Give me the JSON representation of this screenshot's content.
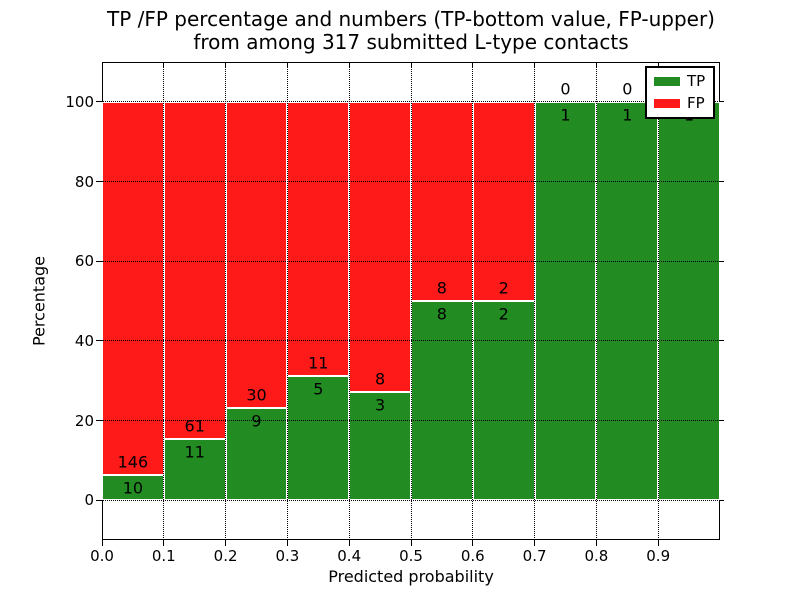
{
  "title": {
    "line1": "TP /FP percentage and numbers (TP-bottom value, FP-upper)",
    "line2": "from among 317 submitted L-type contacts"
  },
  "axes": {
    "xlabel": "Predicted probability",
    "ylabel": "Percentage",
    "x_tick_labels": [
      "0.0",
      "0.1",
      "0.2",
      "0.3",
      "0.4",
      "0.5",
      "0.6",
      "0.7",
      "0.8",
      "0.9"
    ],
    "y_tick_labels": [
      "0",
      "20",
      "40",
      "60",
      "80",
      "100"
    ],
    "y_tick_values": [
      0,
      20,
      40,
      60,
      80,
      100
    ]
  },
  "legend": {
    "position": "upper right",
    "items": [
      {
        "label": "TP",
        "color": "#228c22"
      },
      {
        "label": "FP",
        "color": "#ff1a1a"
      }
    ]
  },
  "chart_data": {
    "type": "bar",
    "subtype": "stacked-100-percent",
    "title": "TP /FP percentage and numbers (TP-bottom value, FP-upper) from among 317 submitted L-type contacts",
    "xlabel": "Predicted probability",
    "ylabel": "Percentage",
    "bin_edges": [
      0.0,
      0.1,
      0.2,
      0.3,
      0.4,
      0.5,
      0.6,
      0.7,
      0.8,
      0.9,
      1.0
    ],
    "series": [
      {
        "name": "TP",
        "color": "#228c22",
        "counts": [
          10,
          11,
          9,
          5,
          3,
          8,
          2,
          1,
          1,
          1
        ]
      },
      {
        "name": "FP",
        "color": "#ff1a1a",
        "counts": [
          146,
          61,
          30,
          11,
          8,
          8,
          2,
          0,
          0,
          0
        ]
      }
    ],
    "tp_percent_per_bin": [
      6.41,
      15.28,
      23.08,
      31.25,
      27.27,
      50.0,
      50.0,
      100.0,
      100.0,
      100.0
    ],
    "total_contacts": 317,
    "xlim": [
      0.0,
      1.0
    ],
    "ylim": [
      -10,
      110
    ],
    "grid": true,
    "grid_style": "dotted",
    "bar_edge_color": "#ffffff",
    "annotation_scheme": "FP count above segment boundary, TP count below"
  }
}
